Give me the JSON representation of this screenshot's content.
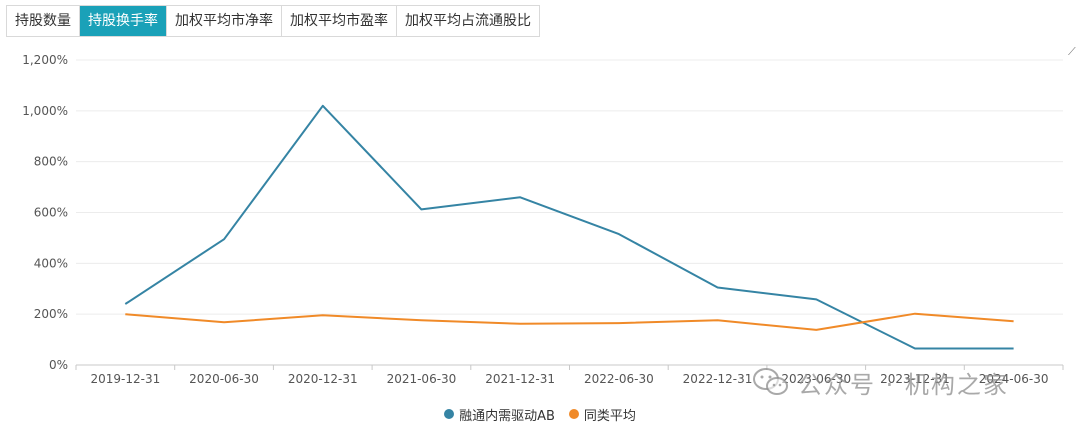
{
  "tabs": [
    {
      "label": "持股数量",
      "active": false
    },
    {
      "label": "持股换手率",
      "active": true
    },
    {
      "label": "加权平均市净率",
      "active": false
    },
    {
      "label": "加权平均市盈率",
      "active": false
    },
    {
      "label": "加权平均占流通股比",
      "active": false
    }
  ],
  "corner_icon": "collapse-icon",
  "watermark": {
    "text": "公众号 · 机构之家",
    "icon": "wechat-icon"
  },
  "colors": {
    "series1": "#3584a4",
    "series2": "#f08a28",
    "active_tab": "#1aa1b8",
    "grid": "#e8e8e8"
  },
  "chart_data": {
    "type": "line",
    "categories": [
      "2019-12-31",
      "2020-06-30",
      "2020-12-31",
      "2021-06-30",
      "2021-12-31",
      "2022-06-30",
      "2022-12-31",
      "2023-06-30",
      "2023-12-31",
      "2024-06-30"
    ],
    "series": [
      {
        "name": "融通内需驱动AB",
        "color": "#3584a4",
        "values": [
          240,
          495,
          1020,
          612,
          660,
          515,
          305,
          258,
          65,
          65
        ]
      },
      {
        "name": "同类平均",
        "color": "#f08a28",
        "values": [
          200,
          168,
          196,
          176,
          162,
          165,
          176,
          138,
          202,
          172
        ]
      }
    ],
    "yticks": [
      "0%",
      "200%",
      "400%",
      "600%",
      "800%",
      "1,000%",
      "1,200%"
    ],
    "ylim": [
      0,
      1200
    ],
    "ytick_step": 200,
    "grid": true,
    "legend_position": "bottom-center"
  }
}
